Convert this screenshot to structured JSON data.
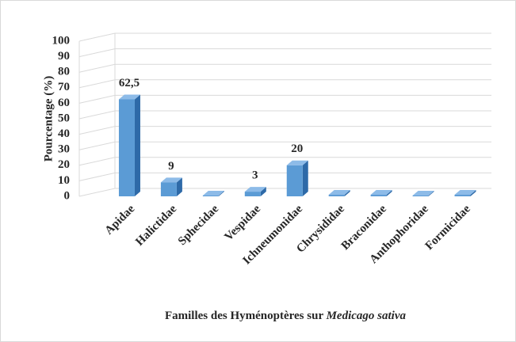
{
  "chart_data": {
    "type": "bar",
    "categories": [
      "Apidae",
      "Halictidae",
      "Sphecidae",
      "Vespidae",
      "Ichneumonidae",
      "Chrysididae",
      "Braconidae",
      "Anthophoridae",
      "Formicidae"
    ],
    "values": [
      62.5,
      9,
      0.5,
      3,
      20,
      1,
      1,
      0.5,
      1
    ],
    "value_labels": [
      "62,5",
      "9",
      null,
      "3",
      "20",
      null,
      null,
      null,
      null
    ],
    "color": "#5b9bd5",
    "y_label": "Pourcentage (%)",
    "x_label": [
      "Familles des Hyménoptères sur",
      "Medicago sativa"
    ],
    "ylim": [
      0,
      100
    ],
    "yticks": [
      0,
      10,
      20,
      30,
      40,
      50,
      60,
      70,
      80,
      90,
      100
    ],
    "grid": true
  }
}
